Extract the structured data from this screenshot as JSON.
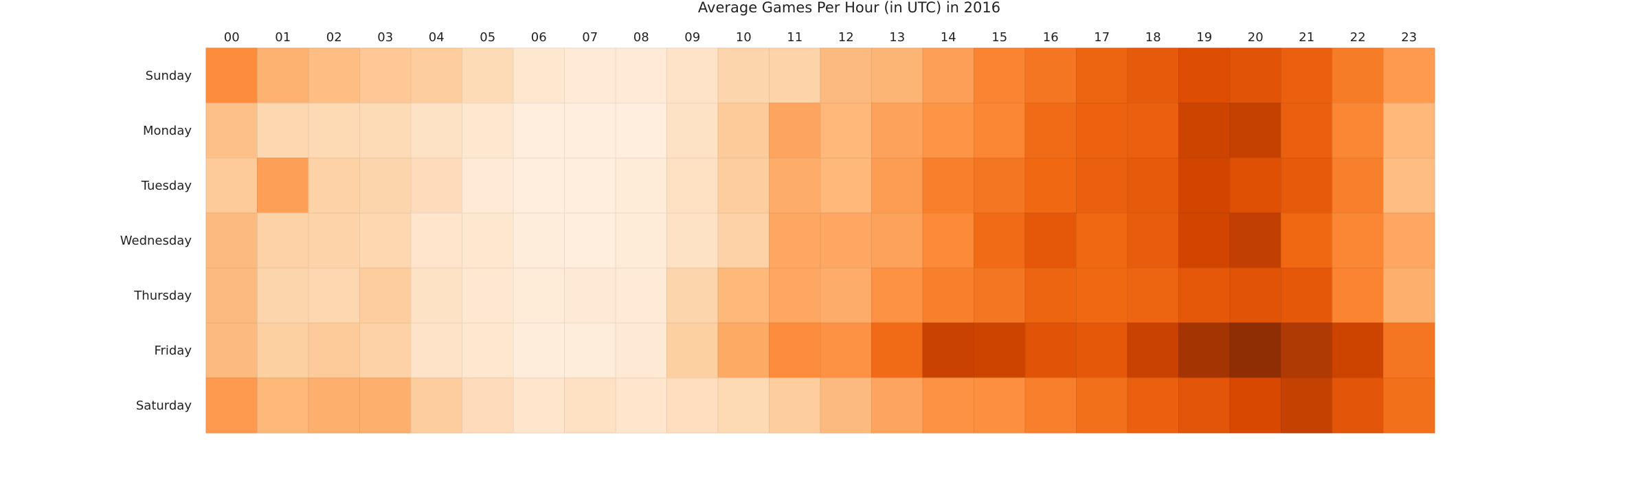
{
  "chart_data": {
    "type": "heatmap",
    "title": "Average Games Per Hour (in UTC) in 2016",
    "xlabel": "",
    "ylabel": "",
    "x_categories": [
      "00",
      "01",
      "02",
      "03",
      "04",
      "05",
      "06",
      "07",
      "08",
      "09",
      "10",
      "11",
      "12",
      "13",
      "14",
      "15",
      "16",
      "17",
      "18",
      "19",
      "20",
      "21",
      "22",
      "23"
    ],
    "y_categories": [
      "Sunday",
      "Monday",
      "Tuesday",
      "Wednesday",
      "Thursday",
      "Friday",
      "Saturday"
    ],
    "colormap": "Oranges",
    "grid": false,
    "legend": "none",
    "values": [
      [
        0.5,
        0.36,
        0.32,
        0.28,
        0.26,
        0.19,
        0.12,
        0.09,
        0.09,
        0.14,
        0.22,
        0.23,
        0.33,
        0.35,
        0.43,
        0.53,
        0.58,
        0.64,
        0.68,
        0.73,
        0.71,
        0.66,
        0.56,
        0.45
      ],
      [
        0.31,
        0.21,
        0.2,
        0.19,
        0.15,
        0.12,
        0.06,
        0.06,
        0.06,
        0.15,
        0.27,
        0.41,
        0.34,
        0.42,
        0.47,
        0.52,
        0.62,
        0.65,
        0.66,
        0.78,
        0.8,
        0.66,
        0.52,
        0.34
      ],
      [
        0.27,
        0.43,
        0.24,
        0.22,
        0.18,
        0.09,
        0.06,
        0.06,
        0.08,
        0.16,
        0.26,
        0.38,
        0.34,
        0.44,
        0.55,
        0.58,
        0.63,
        0.66,
        0.68,
        0.77,
        0.72,
        0.68,
        0.55,
        0.32
      ],
      [
        0.33,
        0.24,
        0.23,
        0.21,
        0.13,
        0.12,
        0.07,
        0.06,
        0.08,
        0.15,
        0.24,
        0.4,
        0.4,
        0.42,
        0.51,
        0.62,
        0.69,
        0.63,
        0.67,
        0.77,
        0.81,
        0.63,
        0.52,
        0.4
      ],
      [
        0.33,
        0.22,
        0.21,
        0.26,
        0.15,
        0.11,
        0.08,
        0.1,
        0.09,
        0.22,
        0.34,
        0.4,
        0.38,
        0.48,
        0.55,
        0.58,
        0.64,
        0.63,
        0.64,
        0.69,
        0.71,
        0.69,
        0.53,
        0.37
      ],
      [
        0.33,
        0.25,
        0.27,
        0.24,
        0.14,
        0.12,
        0.07,
        0.07,
        0.1,
        0.25,
        0.39,
        0.5,
        0.48,
        0.62,
        0.79,
        0.78,
        0.71,
        0.69,
        0.79,
        0.88,
        0.95,
        0.85,
        0.78,
        0.58
      ],
      [
        0.45,
        0.34,
        0.37,
        0.37,
        0.26,
        0.18,
        0.13,
        0.16,
        0.13,
        0.17,
        0.2,
        0.26,
        0.33,
        0.41,
        0.48,
        0.49,
        0.55,
        0.6,
        0.66,
        0.7,
        0.75,
        0.8,
        0.7,
        0.6
      ]
    ]
  }
}
